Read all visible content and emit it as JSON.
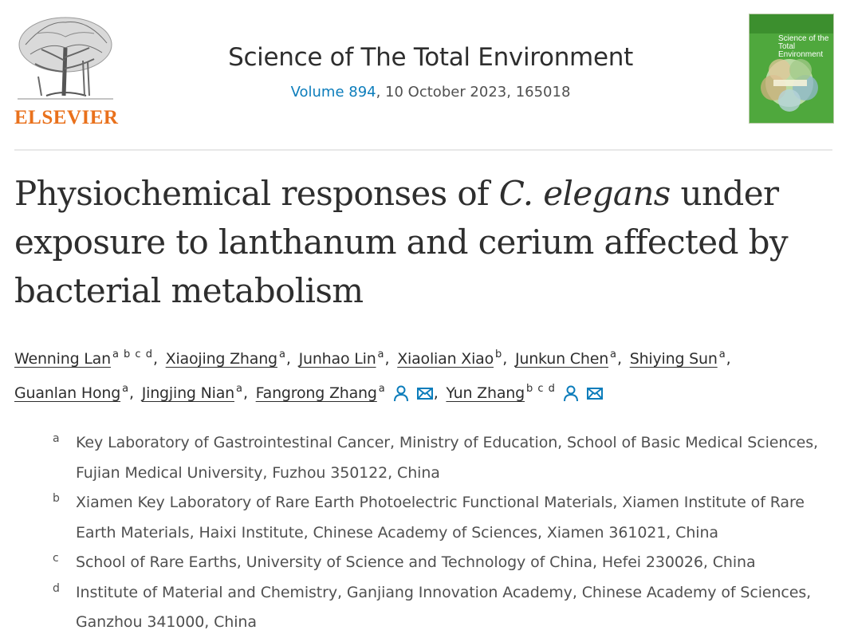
{
  "publisher": {
    "name": "ELSEVIER",
    "logo_icon": "elsevier-tree-logo",
    "brand_color": "#e9711c"
  },
  "journal": {
    "title": "Science of The Total Environment",
    "volume_link": "Volume 894",
    "issue_info": ", 10 October 2023, 165018",
    "cover_title_line1": "Science of the",
    "cover_title_line2": "Total Environment",
    "link_color": "#0c7dbb"
  },
  "article": {
    "title_part1": "Physiochemical responses of ",
    "title_italic": "C. elegans",
    "title_part2": " under exposure to lanthanum and cerium affected by bacterial metabolism"
  },
  "authors": [
    {
      "name": "Wenning Lan",
      "aff": "a b c d",
      "sep": ","
    },
    {
      "name": "Xiaojing Zhang",
      "aff": "a",
      "sep": ","
    },
    {
      "name": "Junhao Lin",
      "aff": "a",
      "sep": ","
    },
    {
      "name": "Xiaolian Xiao",
      "aff": "b",
      "sep": ","
    },
    {
      "name": "Junkun Chen",
      "aff": "a",
      "sep": ","
    },
    {
      "name": "Shiying Sun",
      "aff": "a",
      "sep": ","
    },
    {
      "name": "Guanlan Hong",
      "aff": "a",
      "sep": ","
    },
    {
      "name": "Jingjing Nian",
      "aff": "a",
      "sep": ","
    },
    {
      "name": "Fangrong Zhang",
      "aff": "a",
      "sep": ",",
      "icons": [
        "person-icon",
        "envelope-icon"
      ]
    },
    {
      "name": "Yun Zhang",
      "aff": "b c d",
      "sep": "",
      "icons": [
        "person-icon",
        "envelope-icon"
      ]
    }
  ],
  "affiliations": [
    {
      "label": "a",
      "text": "Key Laboratory of Gastrointestinal Cancer, Ministry of Education, School of Basic Medical Sciences, Fujian Medical University, Fuzhou 350122, China"
    },
    {
      "label": "b",
      "text": "Xiamen Key Laboratory of Rare Earth Photoelectric Functional Materials, Xiamen Institute of Rare Earth Materials, Haixi Institute, Chinese Academy of Sciences, Xiamen 361021, China"
    },
    {
      "label": "c",
      "text": "School of Rare Earths, University of Science and Technology of China, Hefei 230026, China"
    },
    {
      "label": "d",
      "text": "Institute of Material and Chemistry, Ganjiang Innovation Academy, Chinese Academy of Sciences, Ganzhou 341000, China"
    }
  ]
}
